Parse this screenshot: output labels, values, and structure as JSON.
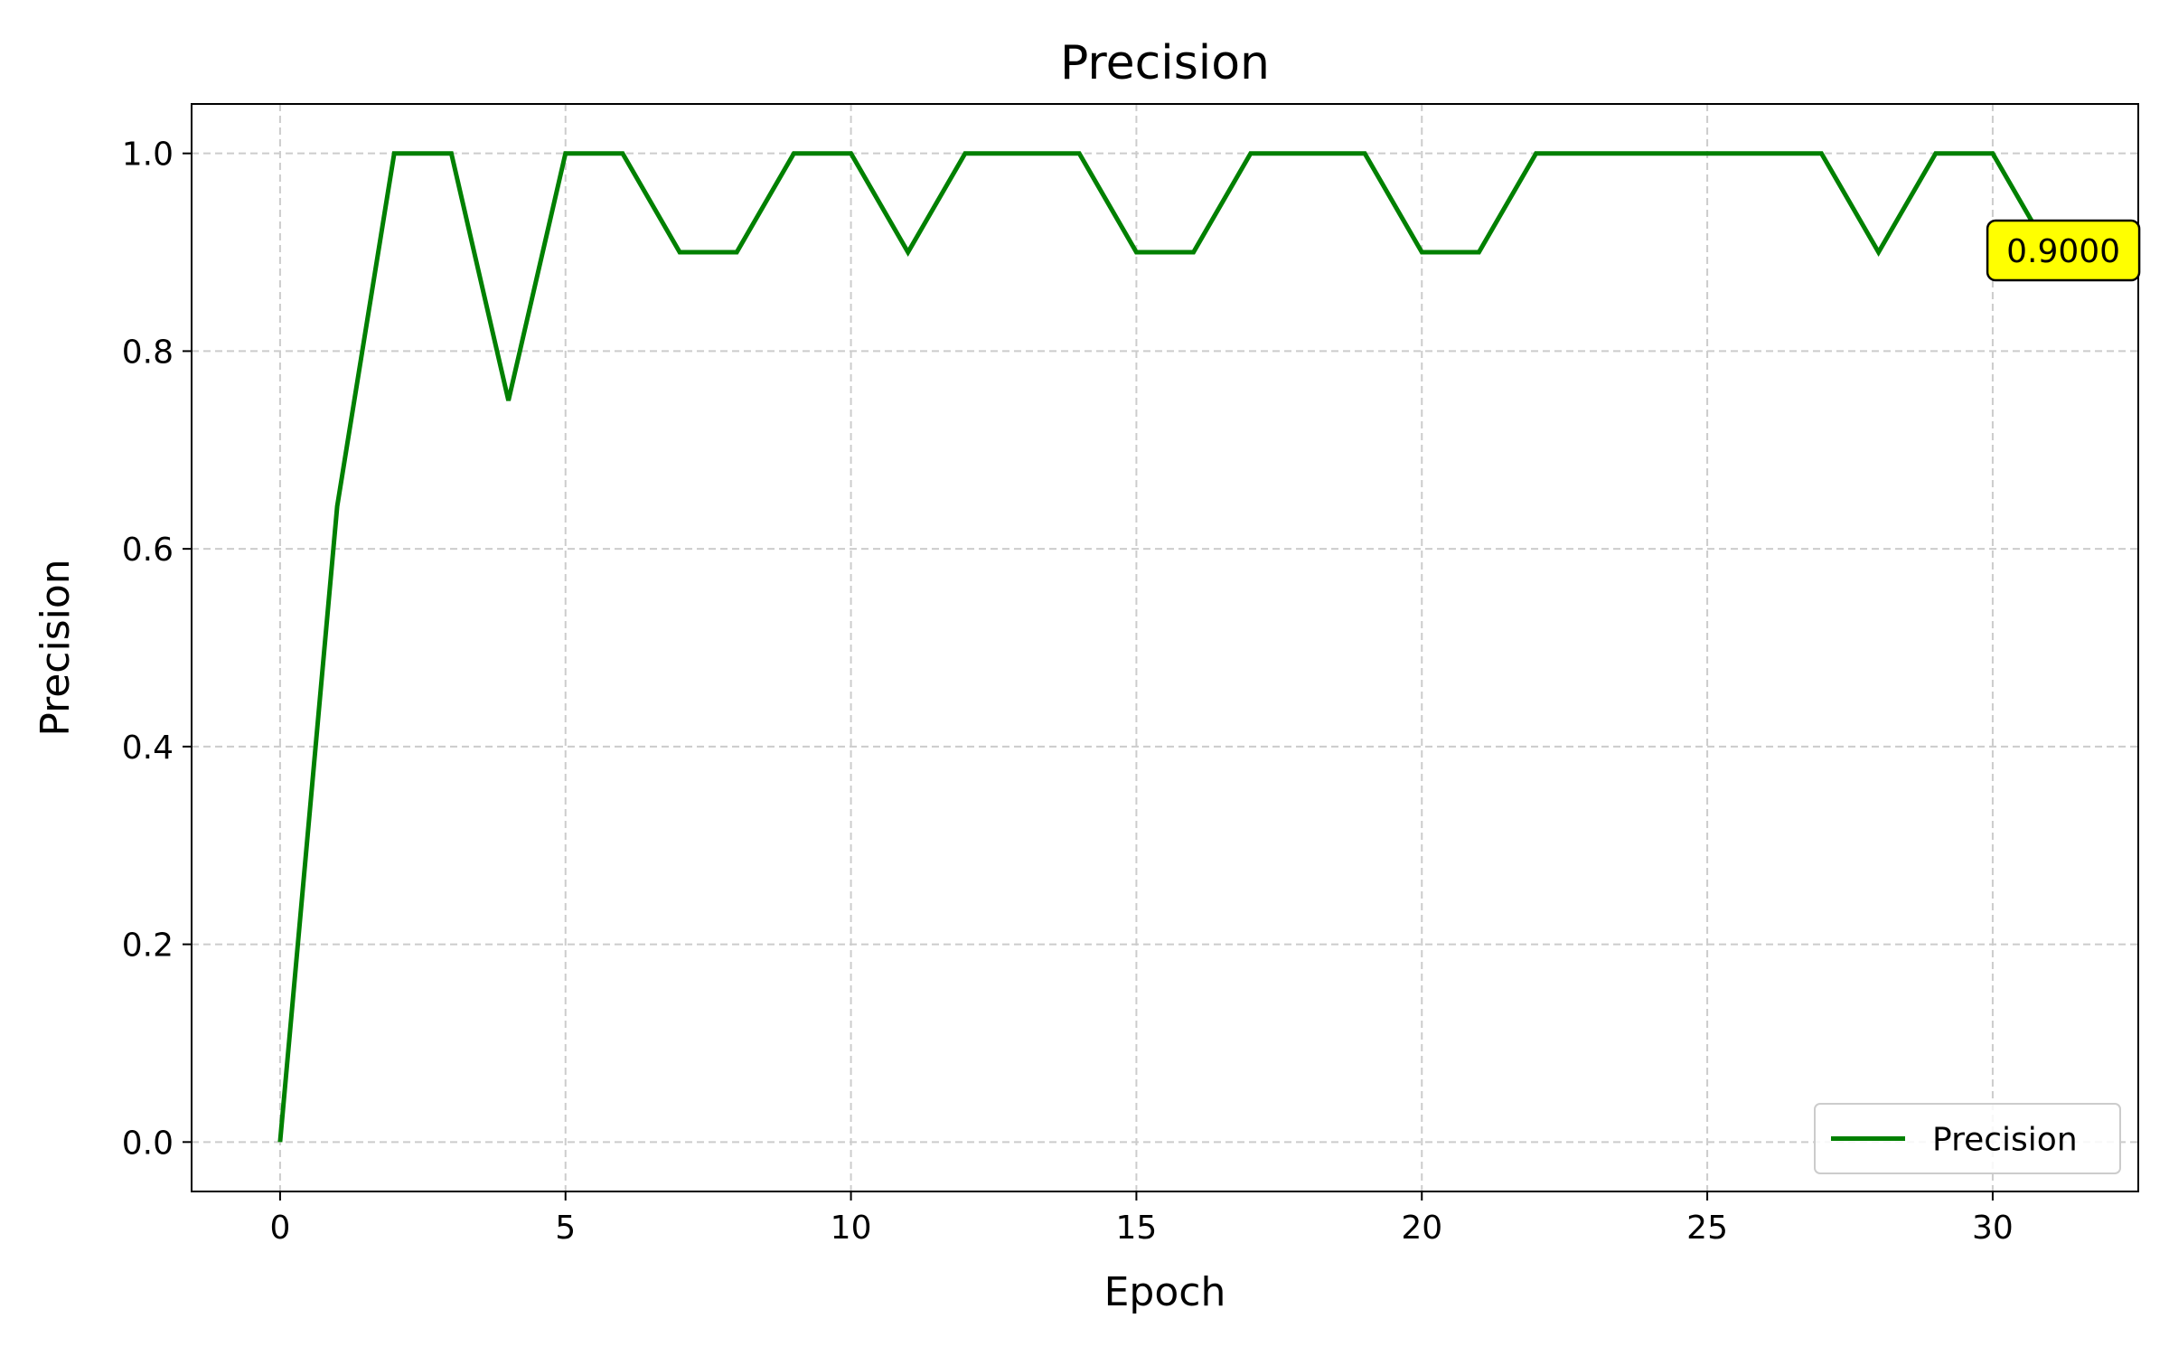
{
  "chart_data": {
    "type": "line",
    "title": "Precision",
    "xlabel": "Epoch",
    "ylabel": "Precision",
    "xlim": [
      -1.55,
      32.55
    ],
    "ylim": [
      -0.05,
      1.05
    ],
    "xticks": [
      0,
      5,
      10,
      15,
      20,
      25,
      30
    ],
    "xtick_labels": [
      "0",
      "5",
      "10",
      "15",
      "20",
      "25",
      "30"
    ],
    "yticks": [
      0.0,
      0.2,
      0.4,
      0.6,
      0.8,
      1.0
    ],
    "ytick_labels": [
      "0.0",
      "0.2",
      "0.4",
      "0.6",
      "0.8",
      "1.0"
    ],
    "grid": true,
    "legend_position": "lower-right",
    "series": [
      {
        "name": "Precision",
        "color": "#008000",
        "x": [
          0,
          1,
          2,
          3,
          4,
          5,
          6,
          7,
          8,
          9,
          10,
          11,
          12,
          13,
          14,
          15,
          16,
          17,
          18,
          19,
          20,
          21,
          22,
          23,
          24,
          25,
          26,
          27,
          28,
          29,
          30,
          31
        ],
        "values": [
          0.0,
          0.643,
          1.0,
          1.0,
          0.75,
          1.0,
          1.0,
          0.9,
          0.9,
          1.0,
          1.0,
          0.9,
          1.0,
          1.0,
          1.0,
          0.9,
          0.9,
          1.0,
          1.0,
          1.0,
          0.9,
          0.9,
          1.0,
          1.0,
          1.0,
          1.0,
          1.0,
          1.0,
          0.9,
          1.0,
          1.0,
          0.9
        ]
      }
    ],
    "annotation": {
      "text": "0.9000",
      "x": 31,
      "y": 0.9,
      "background": "#ffff00"
    }
  }
}
